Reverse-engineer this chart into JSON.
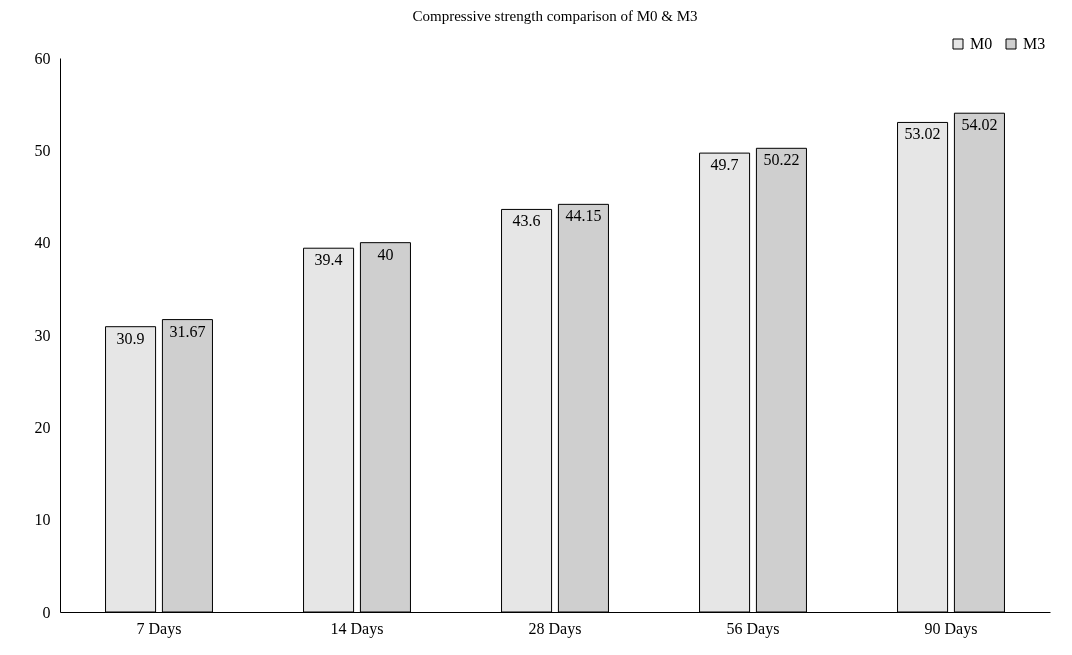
{
  "chart_data": {
    "type": "bar",
    "title": "Compressive strength comparison of M0 & M3",
    "categories": [
      "7 Days",
      "14 Days",
      "28 Days",
      "56 Days",
      "90 Days"
    ],
    "series": [
      {
        "name": "M0",
        "color": "#e6e6e6",
        "values": [
          30.9,
          39.4,
          43.6,
          49.7,
          53.02
        ]
      },
      {
        "name": "M3",
        "color": "#cfcfcf",
        "values": [
          31.67,
          40,
          44.15,
          50.22,
          54.02
        ]
      }
    ],
    "ylim": [
      0,
      60
    ],
    "yticks": [
      0,
      10,
      20,
      30,
      40,
      50,
      60
    ],
    "data_labels": true,
    "legend": "top right",
    "grid": false
  }
}
